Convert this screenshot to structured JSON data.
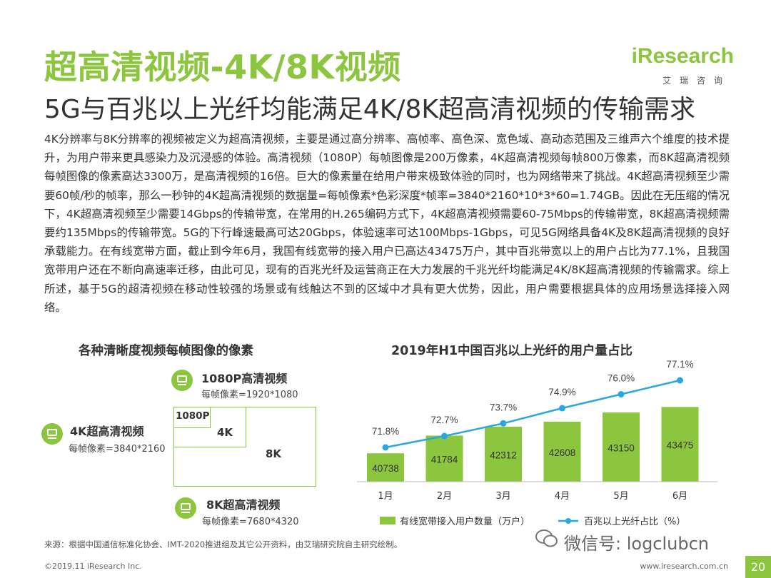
{
  "header": {
    "title": "超高清视频-4K/8K视频",
    "subtitle": "5G与百兆以上光纤均能满足4K/8K超高清视频的传输需求",
    "logo_text": "iResearch",
    "logo_cn": "艾瑞咨询"
  },
  "body_text": "4K分辨率与8K分辨率的视频被定义为超高清视频，主要是通过高分辨率、高帧率、高色深、宽色域、高动态范围及三维声六个维度的技术提升，为用户带来更具感染力及沉浸感的体验。高清视频（1080P）每帧图像是200万像素，4K超高清视频每帧800万像素，而8K超高清视频每帧图像的像素高达3300万，是高清视频的16倍。巨大的像素量在给用户带来极致体验的同时，也为网络带来了挑战。4K超高清视频至少需要60帧/秒的帧率，那么一秒钟的4K超高清视频的数据量=每帧像素*色彩深度*帧率=3840*2160*10*3*60=1.74GB。因此在无压缩的情况下，4K超高清视频至少需要14Gbps的传输带宽，在常用的H.265编码方式下，4K超高清视频需要60-75Mbps的传输带宽，8K超高清视频需要约135Mbps的传输带宽。5G的下行峰速最高可达20Gbps，体验速率可达100Mbps-1Gbps，可见5G网络具备4K及8K超高清视频的良好承载能力。在有线宽带方面，截止到今年6月，我国有线宽带的接入用户已高达43475万户，其中百兆带宽以上的用户占比为77.1%，且我国宽带用户还在不断向高速率迁移，由此可见，现有的百兆光纤及运营商正在大力发展的千兆光纤均能满足4K/8K超高清视频的传输需求。综上所述，基于5G的超清视频在移动性较强的场景或有线触达不到的区域中才具有更大优势，因此，用户需要根据具体的应用场景选择接入网络。",
  "resolution_diagram": {
    "heading": "各种清晰度视频每帧图像的像素",
    "items": [
      {
        "name": "1080P高清视频",
        "pixels": "每帧像素=1920*1080"
      },
      {
        "name": "4K超高清视频",
        "pixels": "每帧像素=3840*2160"
      },
      {
        "name": "8K超高清视频",
        "pixels": "每帧像素=7680*4320"
      }
    ],
    "box_labels": {
      "p1080": "1080P",
      "k4": "4K",
      "k8": "8K"
    }
  },
  "chart_data": {
    "type": "bar",
    "title": "2019年H1中国百兆以上光纤的用户量占比",
    "categories": [
      "1月",
      "2月",
      "3月",
      "4月",
      "5月",
      "6月"
    ],
    "series": [
      {
        "name": "有线宽带接入用户数量（万户）",
        "type": "bar",
        "values": [
          40738,
          41784,
          42312,
          42608,
          43150,
          43475
        ],
        "color": "#8cc63f"
      },
      {
        "name": "百兆以上光纤占比（%）",
        "type": "line",
        "values": [
          71.8,
          72.7,
          73.7,
          74.9,
          76.0,
          77.1
        ],
        "labels": [
          "71.8%",
          "72.7%",
          "73.7%",
          "74.9%",
          "76.0%",
          "77.1%"
        ],
        "color": "#29a8e0"
      }
    ],
    "grid": false,
    "legend_placement": "bottom"
  },
  "footer": {
    "source": "来源：根据中国通信标准化协会、IMT-2020推进组及其它公开资料，由艾瑞研究院自主研究绘制。",
    "copyright": "©2019.11 iResearch Inc.",
    "site": "www.iresearch.com.cn",
    "page_number": "20",
    "watermark": "微信号: logclubcn"
  },
  "colors": {
    "accent": "#8cc63f",
    "line": "#29a8e0"
  }
}
